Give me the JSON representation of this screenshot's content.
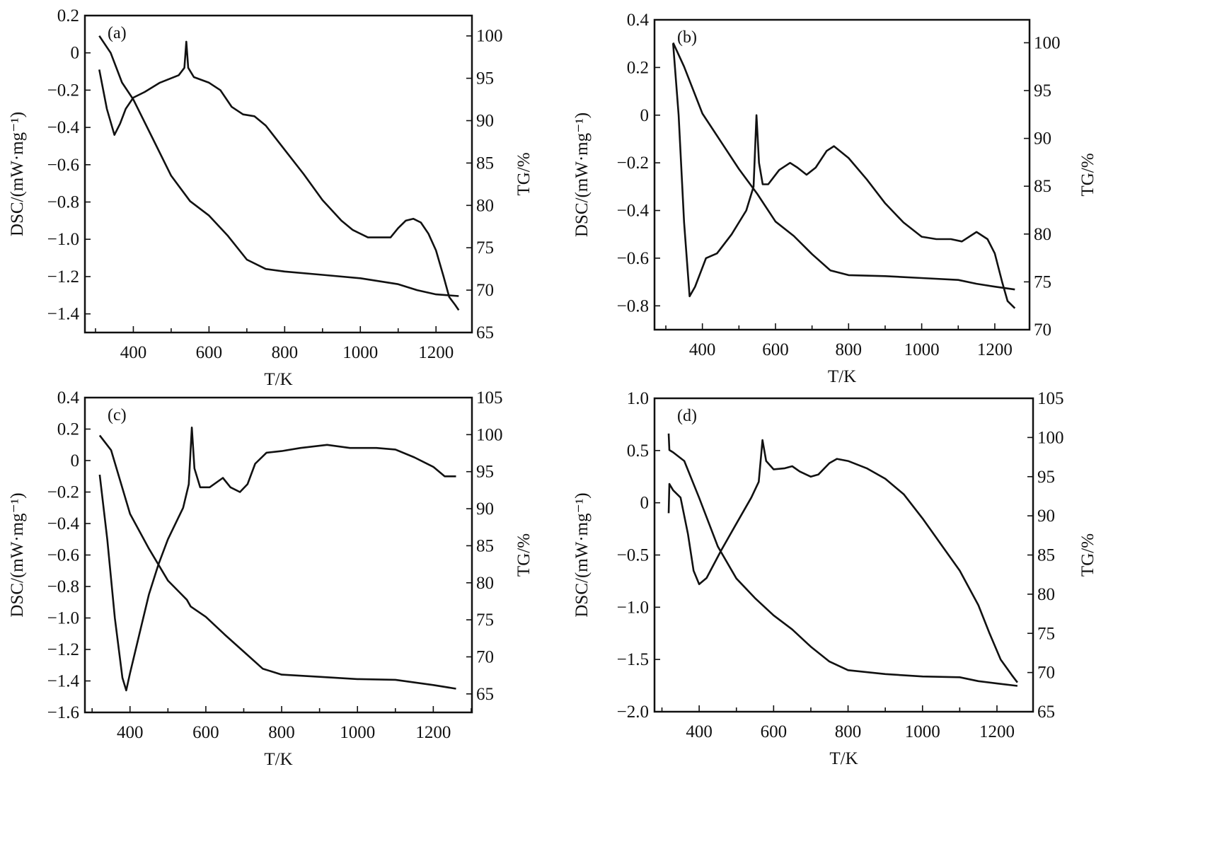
{
  "chart_data": [
    {
      "type": "line",
      "panel_label": "(a)",
      "xlabel": "T/K",
      "ylabel_left": "DSC/(mW·mg⁻¹)",
      "ylabel_right": "TG/%",
      "xlim": [
        272,
        1295
      ],
      "ylim_left": [
        -1.5,
        0.2
      ],
      "ylim_right": [
        65,
        102.4
      ],
      "xticks": [
        400,
        600,
        800,
        1000,
        1200
      ],
      "yticks_left": [
        0.2,
        0,
        -0.2,
        -0.4,
        -0.6,
        -0.8,
        -1.0,
        -1.2,
        -1.4
      ],
      "yticks_right": [
        100,
        95,
        90,
        85,
        80,
        75,
        70,
        65
      ],
      "series": [
        {
          "name": "DSC",
          "axis": "left",
          "x": [
            310,
            330,
            350,
            365,
            380,
            400,
            430,
            470,
            520,
            535,
            540,
            545,
            560,
            600,
            630,
            660,
            690,
            720,
            750,
            800,
            850,
            900,
            950,
            980,
            1020,
            1050,
            1080,
            1100,
            1120,
            1140,
            1160,
            1180,
            1200,
            1220,
            1235,
            1250,
            1260
          ],
          "y": [
            -0.09,
            -0.3,
            -0.44,
            -0.38,
            -0.3,
            -0.24,
            -0.21,
            -0.16,
            -0.12,
            -0.08,
            0.06,
            -0.08,
            -0.13,
            -0.16,
            -0.2,
            -0.29,
            -0.33,
            -0.34,
            -0.39,
            -0.52,
            -0.65,
            -0.79,
            -0.9,
            -0.95,
            -0.99,
            -0.99,
            -0.99,
            -0.94,
            -0.9,
            -0.89,
            -0.91,
            -0.97,
            -1.06,
            -1.2,
            -1.31,
            -1.35,
            -1.38
          ]
        },
        {
          "name": "TG",
          "axis": "right",
          "x": [
            310,
            340,
            370,
            400,
            450,
            500,
            550,
            600,
            650,
            700,
            750,
            800,
            900,
            1000,
            1100,
            1150,
            1200,
            1260
          ],
          "y": [
            100,
            98,
            94.5,
            92.5,
            88,
            83.5,
            80.5,
            78.8,
            76.4,
            73.6,
            72.5,
            72.2,
            71.8,
            71.4,
            70.7,
            70,
            69.5,
            69.3
          ]
        }
      ]
    },
    {
      "type": "line",
      "panel_label": "(b)",
      "xlabel": "T/K",
      "ylabel_left": "DSC/(mW·mg⁻¹)",
      "ylabel_right": "TG/%",
      "xlim": [
        269,
        1295
      ],
      "ylim_left": [
        -0.9,
        0.4
      ],
      "ylim_right": [
        70,
        102.4
      ],
      "xticks": [
        400,
        600,
        800,
        1000,
        1200
      ],
      "yticks_left": [
        0.4,
        0.2,
        0,
        -0.2,
        -0.4,
        -0.6,
        -0.8
      ],
      "yticks_right": [
        100,
        95,
        90,
        85,
        80,
        75,
        70
      ],
      "series": [
        {
          "name": "DSC",
          "axis": "left",
          "x": [
            320,
            335,
            350,
            365,
            380,
            410,
            440,
            480,
            520,
            540,
            548,
            555,
            565,
            580,
            610,
            640,
            660,
            685,
            710,
            740,
            760,
            800,
            850,
            900,
            950,
            1000,
            1040,
            1080,
            1110,
            1150,
            1180,
            1200,
            1220,
            1235,
            1255
          ],
          "y": [
            0.3,
            0.0,
            -0.45,
            -0.76,
            -0.72,
            -0.6,
            -0.58,
            -0.5,
            -0.4,
            -0.3,
            0.0,
            -0.2,
            -0.29,
            -0.29,
            -0.23,
            -0.2,
            -0.22,
            -0.25,
            -0.22,
            -0.15,
            -0.13,
            -0.18,
            -0.27,
            -0.37,
            -0.45,
            -0.51,
            -0.52,
            -0.52,
            -0.53,
            -0.49,
            -0.52,
            -0.58,
            -0.7,
            -0.78,
            -0.81
          ]
        },
        {
          "name": "TG",
          "axis": "right",
          "x": [
            320,
            350,
            400,
            450,
            500,
            550,
            600,
            650,
            700,
            750,
            800,
            900,
            1000,
            1100,
            1150,
            1200,
            1255
          ],
          "y": [
            100,
            97.5,
            92.6,
            89.7,
            86.8,
            84.2,
            81.3,
            79.8,
            77.9,
            76.2,
            75.7,
            75.6,
            75.4,
            75.2,
            74.8,
            74.5,
            74.2
          ]
        }
      ]
    },
    {
      "type": "line",
      "panel_label": "(c)",
      "xlabel": "T/K",
      "ylabel_left": "DSC/(mW·mg⁻¹)",
      "ylabel_right": "TG/%",
      "xlim": [
        281,
        1302
      ],
      "ylim_left": [
        -1.6,
        0.4
      ],
      "ylim_right": [
        62.5,
        105
      ],
      "xticks": [
        400,
        600,
        800,
        1000,
        1200
      ],
      "yticks_left": [
        0.4,
        0.2,
        0,
        -0.2,
        -0.4,
        -0.6,
        -0.8,
        -1.0,
        -1.2,
        -1.4,
        -1.6
      ],
      "yticks_right": [
        105,
        100,
        95,
        90,
        85,
        80,
        75,
        70,
        65
      ],
      "series": [
        {
          "name": "DSC",
          "axis": "left",
          "x": [
            320,
            340,
            360,
            380,
            390,
            400,
            425,
            450,
            475,
            500,
            540,
            555,
            563,
            570,
            585,
            610,
            645,
            665,
            690,
            710,
            730,
            760,
            800,
            850,
            920,
            980,
            1050,
            1100,
            1150,
            1200,
            1230,
            1260
          ],
          "y": [
            -0.09,
            -0.5,
            -1.0,
            -1.38,
            -1.46,
            -1.35,
            -1.1,
            -0.85,
            -0.66,
            -0.5,
            -0.3,
            -0.15,
            0.21,
            -0.05,
            -0.17,
            -0.17,
            -0.11,
            -0.17,
            -0.2,
            -0.15,
            -0.02,
            0.05,
            0.06,
            0.08,
            0.1,
            0.08,
            0.08,
            0.07,
            0.02,
            -0.04,
            -0.1,
            -0.1
          ]
        },
        {
          "name": "TG",
          "axis": "right",
          "x": [
            320,
            350,
            400,
            450,
            500,
            550,
            560,
            600,
            650,
            700,
            750,
            800,
            900,
            1000,
            1100,
            1200,
            1260
          ],
          "y": [
            99.9,
            97.9,
            89.3,
            84.6,
            80.3,
            77.7,
            76.8,
            75.4,
            73,
            70.7,
            68.4,
            67.6,
            67.3,
            67,
            66.9,
            66.2,
            65.7
          ]
        }
      ]
    },
    {
      "type": "line",
      "panel_label": "(d)",
      "xlabel": "T/K",
      "ylabel_left": "DSC/(mW·mg⁻¹)",
      "ylabel_right": "TG/%",
      "xlim": [
        280,
        1297
      ],
      "ylim_left": [
        -2.0,
        1.0
      ],
      "ylim_right": [
        65,
        105
      ],
      "xticks": [
        400,
        600,
        800,
        1000,
        1200
      ],
      "yticks_left": [
        1.0,
        0.5,
        0,
        -0.5,
        -1.0,
        -1.5,
        -2.0
      ],
      "yticks_right": [
        105,
        100,
        95,
        90,
        85,
        80,
        75,
        70,
        65
      ],
      "series": [
        {
          "name": "DSC",
          "axis": "left",
          "x": [
            318,
            320,
            330,
            350,
            370,
            385,
            400,
            420,
            460,
            500,
            540,
            560,
            570,
            580,
            600,
            630,
            650,
            670,
            700,
            720,
            750,
            770,
            800,
            850,
            900,
            950,
            1000,
            1050,
            1100,
            1150,
            1180,
            1210,
            1240,
            1255
          ],
          "y": [
            -0.1,
            0.18,
            0.12,
            0.05,
            -0.3,
            -0.65,
            -0.78,
            -0.72,
            -0.45,
            -0.2,
            0.05,
            0.2,
            0.6,
            0.4,
            0.32,
            0.33,
            0.35,
            0.3,
            0.25,
            0.27,
            0.38,
            0.42,
            0.4,
            0.33,
            0.23,
            0.08,
            -0.15,
            -0.4,
            -0.65,
            -0.98,
            -1.25,
            -1.5,
            -1.65,
            -1.72
          ]
        },
        {
          "name": "TG",
          "axis": "right",
          "x": [
            318,
            320,
            330,
            360,
            400,
            450,
            500,
            550,
            600,
            650,
            700,
            750,
            800,
            900,
            1000,
            1100,
            1150,
            1200,
            1255
          ],
          "y": [
            100.5,
            98.4,
            98.1,
            97,
            92.3,
            86.1,
            82,
            79.5,
            77.3,
            75.5,
            73.3,
            71.4,
            70.3,
            69.8,
            69.5,
            69.4,
            68.9,
            68.6,
            68.3
          ]
        }
      ]
    }
  ]
}
